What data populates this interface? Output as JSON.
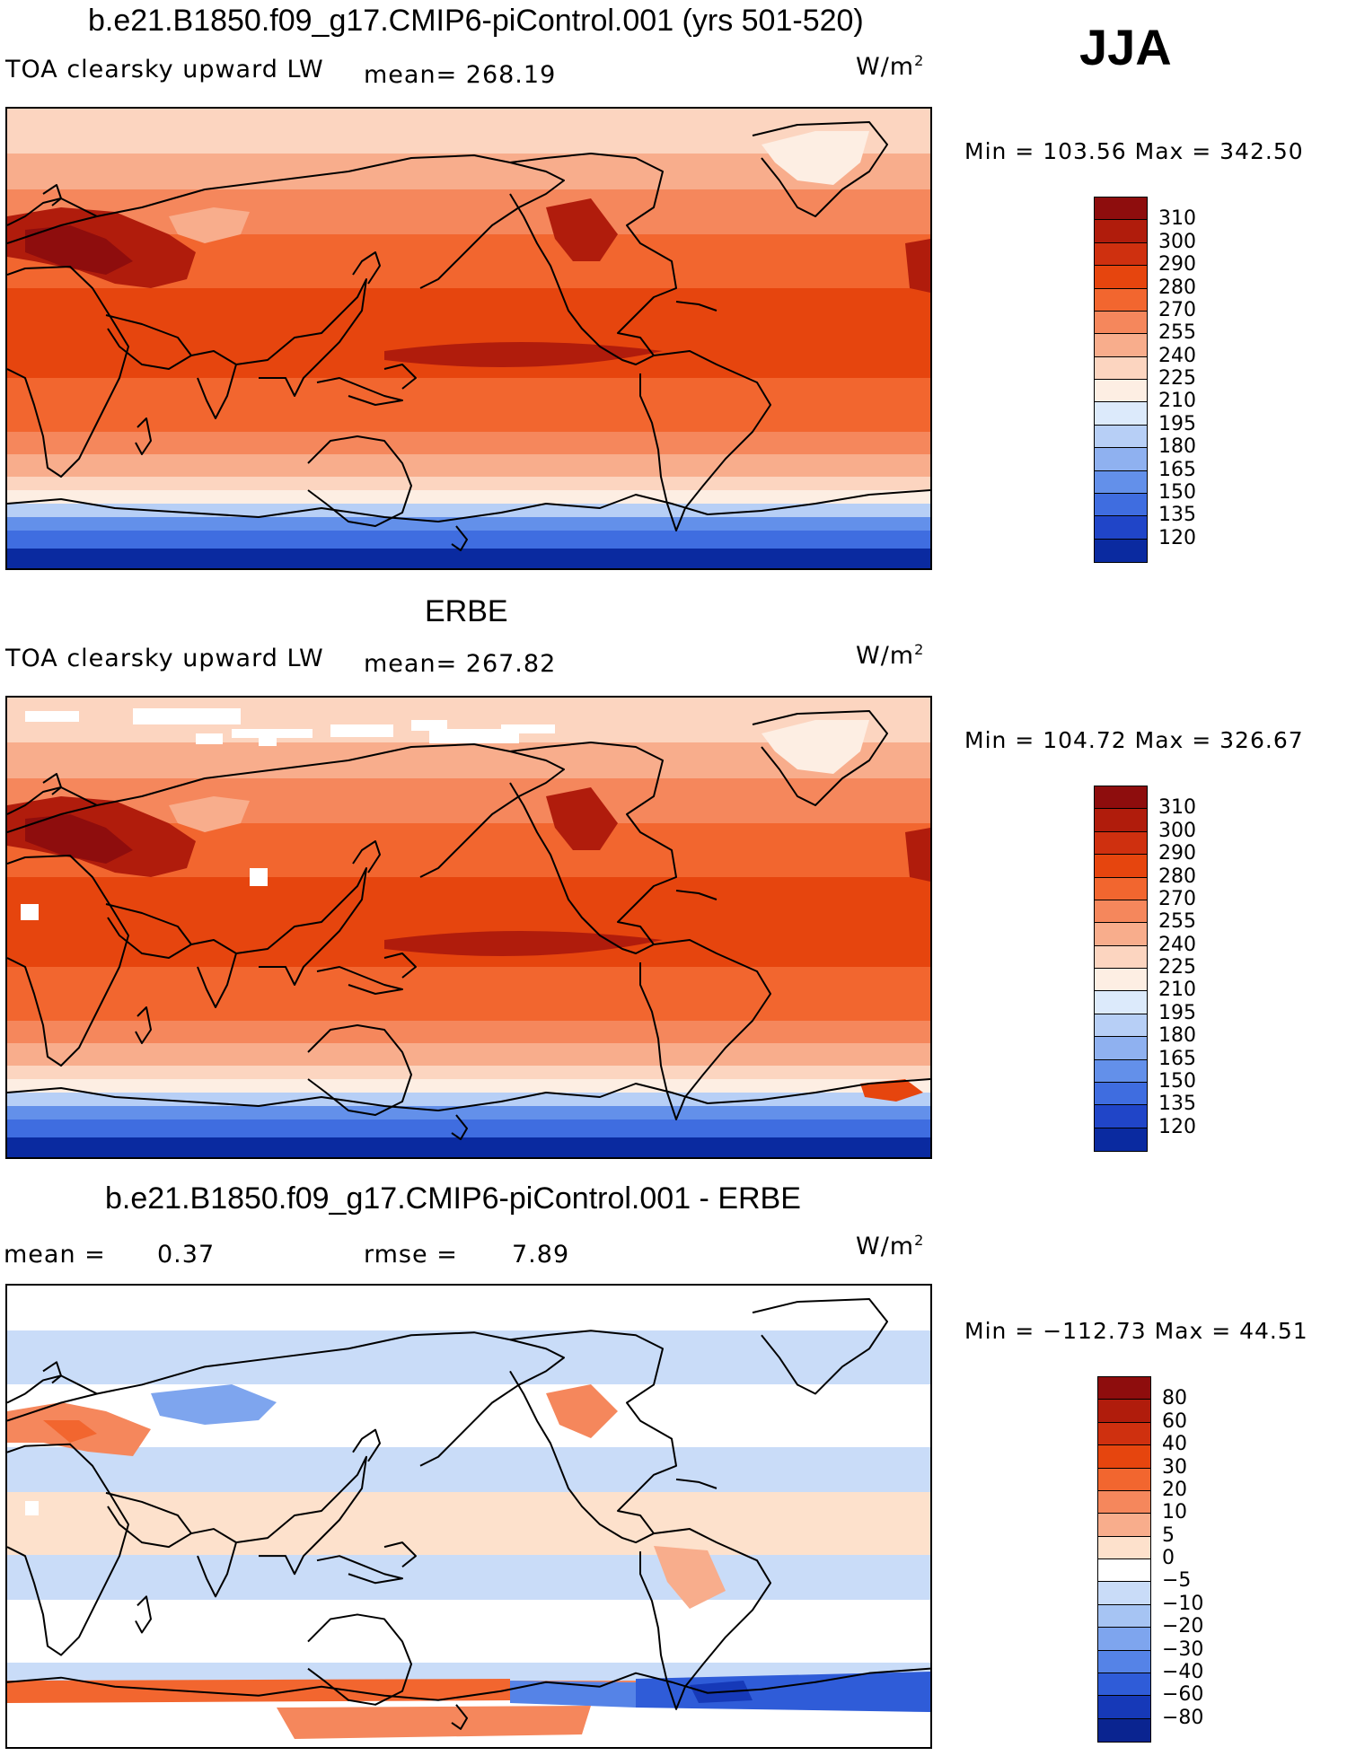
{
  "season": "JJA",
  "panels": [
    {
      "title": "b.e21.B1850.f09_g17.CMIP6-piControl.001 (yrs 501-520)",
      "variable": "TOA clearsky upward LW",
      "stat_text": "mean= 268.19",
      "unit": "W/m",
      "unit_sup": "2",
      "minmax": "Min = 103.56 Max = 342.50",
      "kind": "model"
    },
    {
      "title": "ERBE",
      "variable": "TOA clearsky upward LW",
      "stat_text": "mean= 267.82",
      "unit": "W/m",
      "unit_sup": "2",
      "minmax": "Min = 104.72 Max = 326.67",
      "kind": "obs"
    },
    {
      "title": "b.e21.B1850.f09_g17.CMIP6-piControl.001 - ERBE",
      "mean_label": "mean =",
      "mean_value": "0.37",
      "rmse_label": "rmse =",
      "rmse_value": "7.89",
      "unit": "W/m",
      "unit_sup": "2",
      "minmax": "Min = −112.73 Max =   44.51",
      "kind": "diff"
    }
  ],
  "colorbars": {
    "field": {
      "labels": [
        "310",
        "300",
        "290",
        "280",
        "270",
        "255",
        "240",
        "225",
        "210",
        "195",
        "180",
        "165",
        "150",
        "135",
        "120"
      ],
      "colors": [
        "#8e0d0d",
        "#b01c0c",
        "#cf300f",
        "#e6450e",
        "#f2662f",
        "#f5875c",
        "#f8ad8c",
        "#fcd5c0",
        "#fdeee3",
        "#dceafb",
        "#b7cff6",
        "#8fb1f0",
        "#6390ea",
        "#3f6de0",
        "#2045c8",
        "#0a2aa0"
      ]
    },
    "diff": {
      "labels": [
        "80",
        "60",
        "40",
        "30",
        "20",
        "10",
        "5",
        "0",
        "−5",
        "−10",
        "−20",
        "−30",
        "−40",
        "−60",
        "−80"
      ],
      "colors": [
        "#8e0d0d",
        "#b01c0c",
        "#cf300f",
        "#e6450e",
        "#f2662f",
        "#f5875c",
        "#f8ad8c",
        "#fde1cc",
        "#ffffff",
        "#c9dcf8",
        "#a6c4f3",
        "#7ea5ee",
        "#5583e7",
        "#2f5cd8",
        "#1639b8",
        "#0a2490"
      ]
    }
  }
}
